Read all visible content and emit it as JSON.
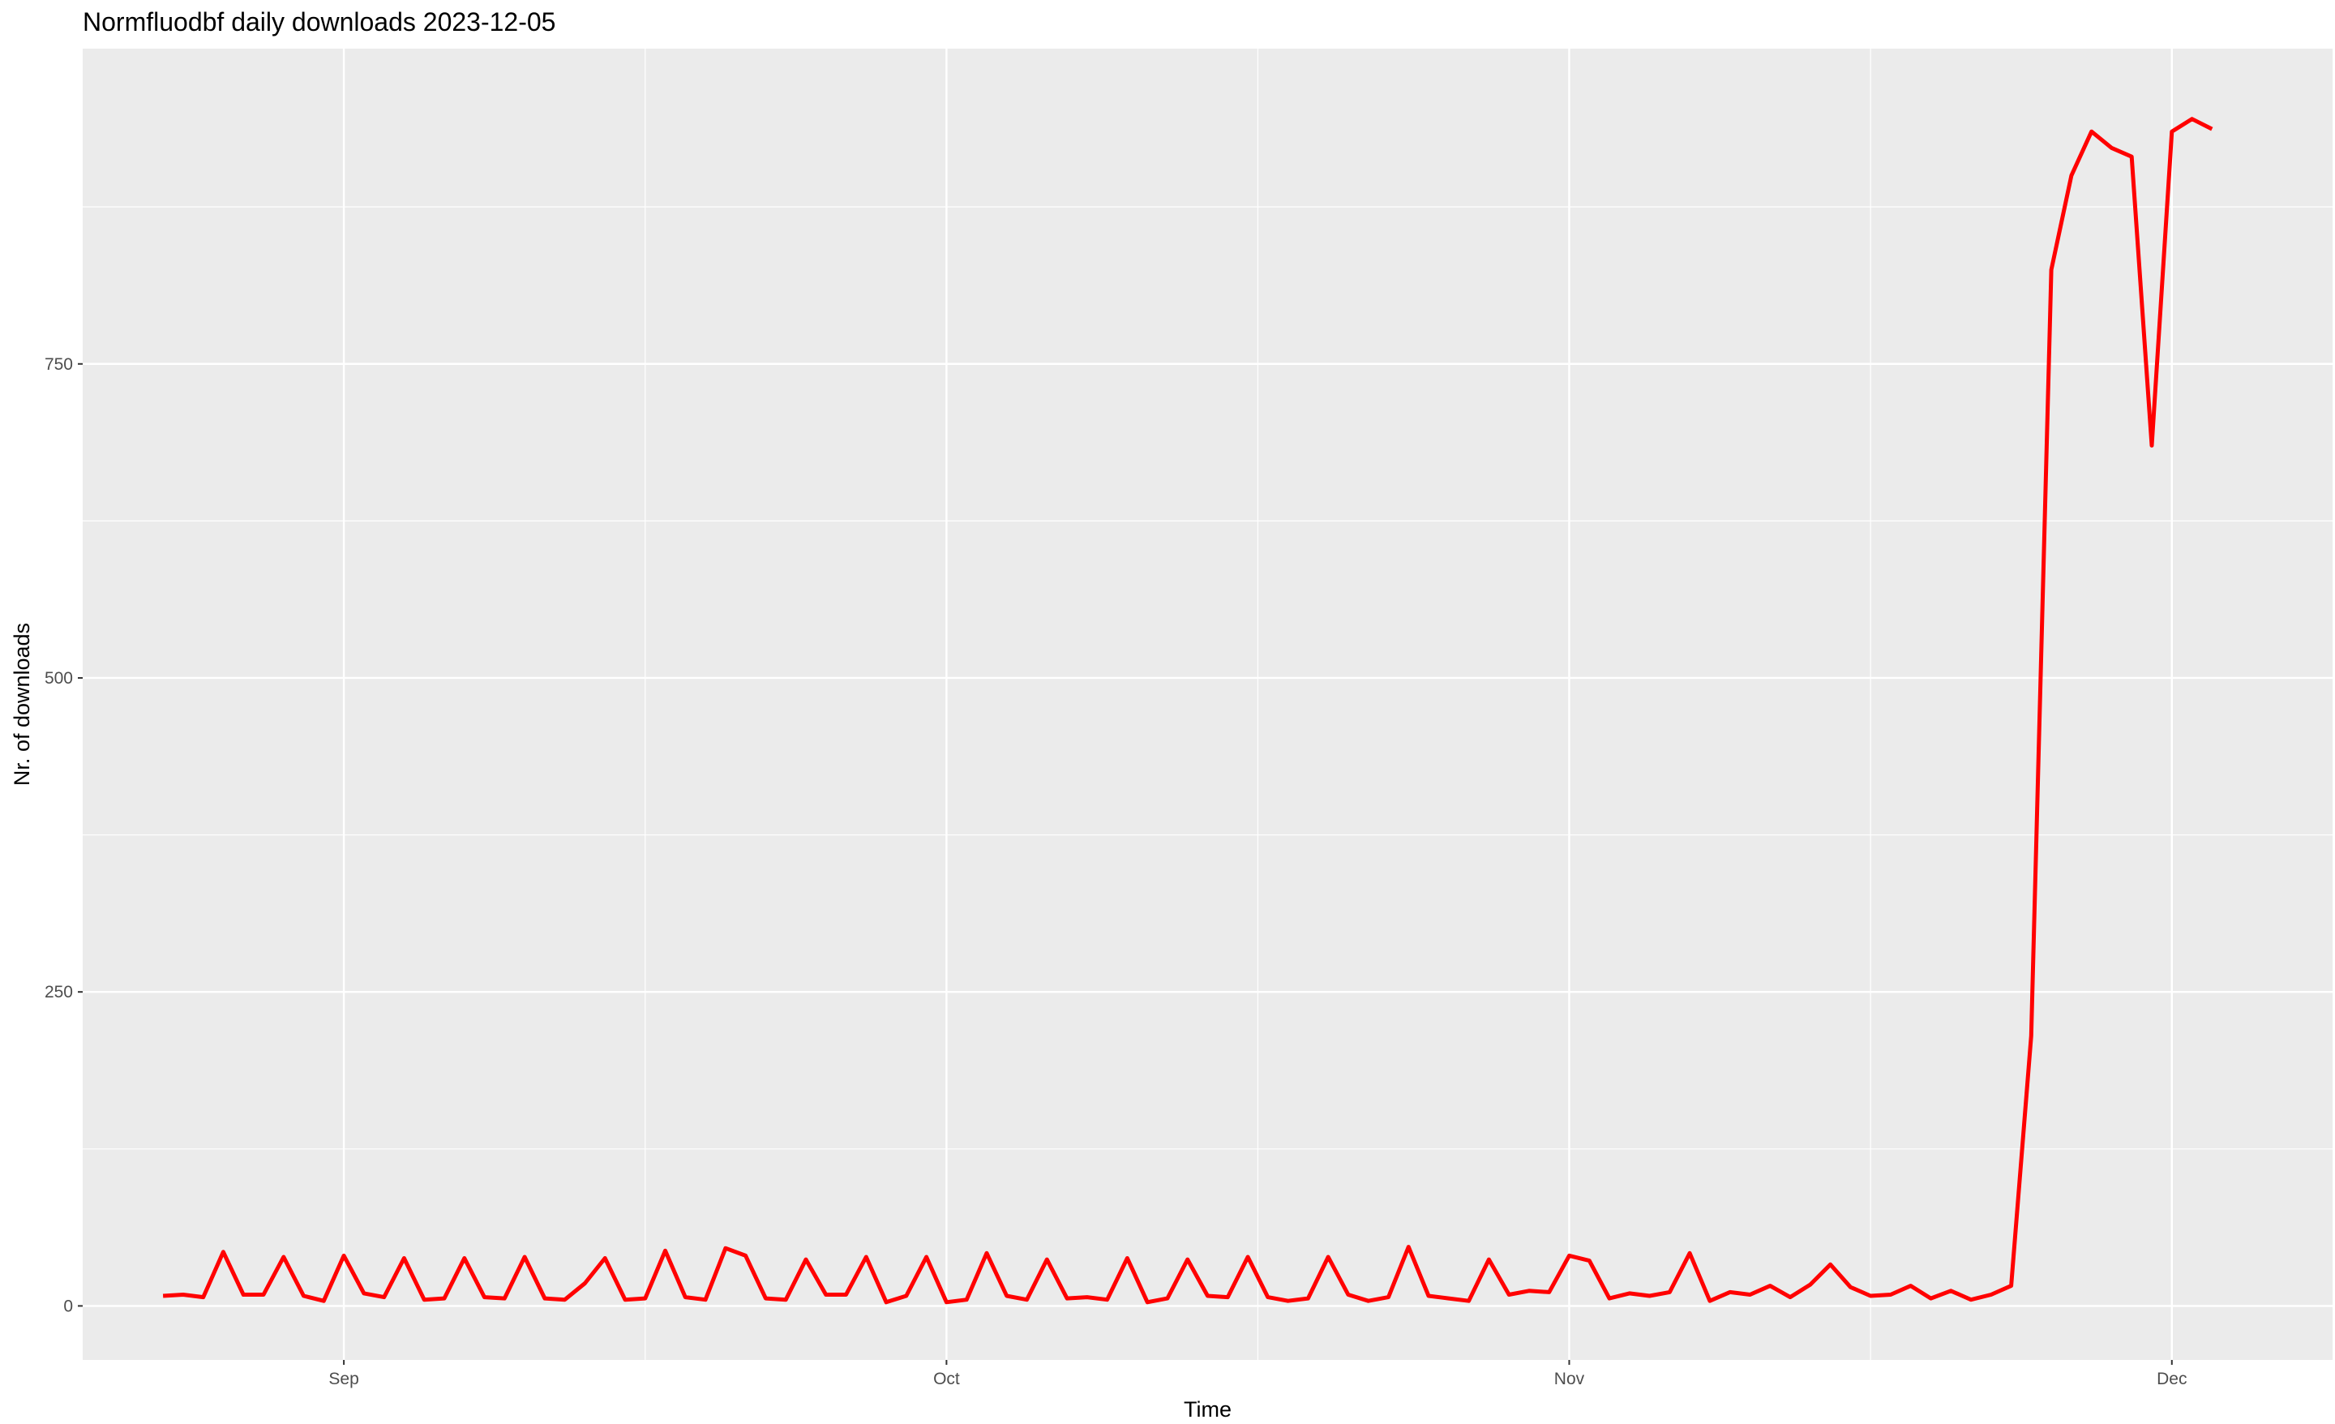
{
  "chart_data": {
    "type": "line",
    "title": "Normfluodbf daily downloads 2023-12-05",
    "xlabel": "Time",
    "ylabel": "Nr. of downloads",
    "x_start": "2023-08-23",
    "x_end": "2023-12-05",
    "xlim": [
      "2023-08-19",
      "2023-12-09"
    ],
    "ylim": [
      -43,
      1001
    ],
    "x_ticks": [
      {
        "label": "Sep",
        "date": "2023-09-01"
      },
      {
        "label": "Oct",
        "date": "2023-10-01"
      },
      {
        "label": "Nov",
        "date": "2023-11-01"
      },
      {
        "label": "Dec",
        "date": "2023-12-01"
      }
    ],
    "y_ticks": [
      0,
      250,
      500,
      750
    ],
    "grid": true,
    "legend": "none",
    "series": [
      {
        "color": "#ff0000",
        "values": [
          8,
          9,
          7,
          43,
          9,
          9,
          39,
          8,
          4,
          40,
          10,
          7,
          38,
          5,
          6,
          38,
          7,
          6,
          39,
          6,
          5,
          18,
          38,
          5,
          6,
          44,
          7,
          5,
          46,
          40,
          6,
          5,
          37,
          9,
          9,
          39,
          3,
          8,
          39,
          3,
          5,
          42,
          8,
          5,
          37,
          6,
          7,
          5,
          38,
          3,
          6,
          37,
          8,
          7,
          39,
          7,
          4,
          6,
          39,
          9,
          4,
          7,
          47,
          8,
          6,
          4,
          37,
          9,
          12,
          11,
          40,
          36,
          6,
          10,
          8,
          11,
          42,
          4,
          11,
          9,
          16,
          7,
          17,
          33,
          15,
          8,
          9,
          16,
          6,
          12,
          5,
          9,
          16,
          215,
          825,
          900,
          935,
          922,
          915,
          685,
          935,
          945,
          937
        ]
      }
    ]
  }
}
